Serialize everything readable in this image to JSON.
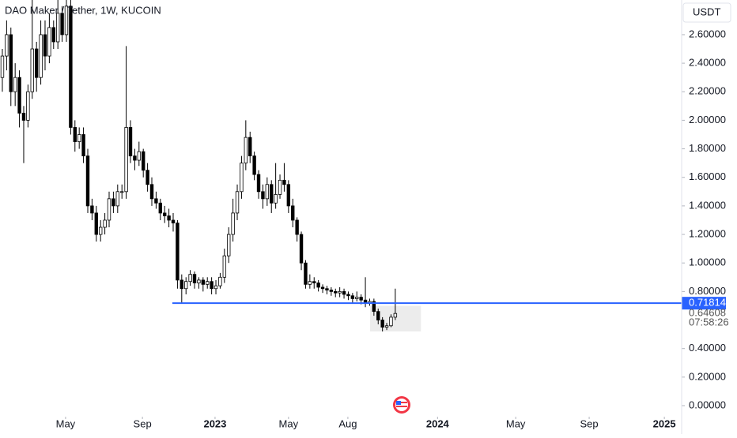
{
  "chart_data": {
    "type": "candlestick",
    "title": "DAO Maker / Tether, 1W, KUCOIN",
    "currency": "USDT",
    "x": [
      0,
      1,
      2,
      3,
      4,
      5,
      6,
      7,
      8,
      9,
      10,
      11,
      12,
      13,
      14,
      15,
      16,
      17,
      18,
      19,
      20,
      21,
      22,
      23,
      24,
      25,
      26,
      27,
      28,
      29,
      30,
      31,
      32,
      33,
      34,
      35,
      36,
      37,
      38,
      39,
      40,
      41,
      42,
      43,
      44,
      45,
      46,
      47,
      48,
      49,
      50,
      51,
      52,
      53,
      54,
      55,
      56,
      57,
      58,
      59,
      60,
      61,
      62,
      63,
      64,
      65,
      66,
      67,
      68,
      69,
      70,
      71,
      72,
      73,
      74,
      75,
      76,
      77,
      78,
      79,
      80,
      81,
      82,
      83,
      84,
      85,
      86,
      87,
      88,
      89,
      90,
      91,
      92
    ],
    "open": [
      2.3,
      2.45,
      2.6,
      2.2,
      2.3,
      2.05,
      2.0,
      2.2,
      2.5,
      2.3,
      2.6,
      2.45,
      2.65,
      2.55,
      2.75,
      2.6,
      2.8,
      1.95,
      1.85,
      1.9,
      1.75,
      1.4,
      1.35,
      1.2,
      1.25,
      1.3,
      1.45,
      1.4,
      1.5,
      1.5,
      1.95,
      1.75,
      1.72,
      1.78,
      1.65,
      1.55,
      1.45,
      1.42,
      1.35,
      1.33,
      1.3,
      1.28,
      0.88,
      0.82,
      0.87,
      0.92,
      0.86,
      0.88,
      0.85,
      0.87,
      0.82,
      0.84,
      0.9,
      1.05,
      1.2,
      1.35,
      1.5,
      1.7,
      1.88,
      1.75,
      1.62,
      1.5,
      1.45,
      1.55,
      1.42,
      1.48,
      1.58,
      1.55,
      1.4,
      1.3,
      1.2,
      1.0,
      0.85,
      0.87,
      0.86,
      0.83,
      0.82,
      0.81,
      0.8,
      0.79,
      0.8,
      0.78,
      0.77,
      0.75,
      0.76,
      0.74,
      0.72,
      0.73,
      0.66,
      0.6,
      0.55,
      0.56,
      0.62
    ],
    "high": [
      2.5,
      2.7,
      2.65,
      2.4,
      2.35,
      2.1,
      2.25,
      2.9,
      2.55,
      2.7,
      2.7,
      2.75,
      2.7,
      2.85,
      2.8,
      2.9,
      2.85,
      2.0,
      1.95,
      1.95,
      1.8,
      1.45,
      1.4,
      1.3,
      1.35,
      1.5,
      1.5,
      1.55,
      1.55,
      2.52,
      2.0,
      1.8,
      1.85,
      1.8,
      1.7,
      1.6,
      1.5,
      1.45,
      1.4,
      1.38,
      1.35,
      1.3,
      0.92,
      0.9,
      0.95,
      0.94,
      0.9,
      0.9,
      0.9,
      0.9,
      0.88,
      0.93,
      1.1,
      1.25,
      1.45,
      1.55,
      1.75,
      2.0,
      1.92,
      1.78,
      1.65,
      1.55,
      1.6,
      1.58,
      1.7,
      1.62,
      1.7,
      1.58,
      1.45,
      1.32,
      1.22,
      1.02,
      0.92,
      0.9,
      0.88,
      0.85,
      0.84,
      0.83,
      0.82,
      0.83,
      0.82,
      0.8,
      0.79,
      0.8,
      0.78,
      0.9,
      0.75,
      0.75,
      0.68,
      0.62,
      0.58,
      0.64,
      0.82
    ],
    "low": [
      2.2,
      2.35,
      2.1,
      2.1,
      1.95,
      1.7,
      1.95,
      2.15,
      2.2,
      2.25,
      2.35,
      2.4,
      2.5,
      2.5,
      2.55,
      2.55,
      1.9,
      1.78,
      1.8,
      1.7,
      1.35,
      1.3,
      1.15,
      1.15,
      1.2,
      1.25,
      1.35,
      1.35,
      1.45,
      1.45,
      1.7,
      1.65,
      1.68,
      1.6,
      1.5,
      1.4,
      1.38,
      1.3,
      1.28,
      1.25,
      1.22,
      0.82,
      0.72,
      0.78,
      0.84,
      0.82,
      0.82,
      0.8,
      0.82,
      0.78,
      0.78,
      0.82,
      0.86,
      1.0,
      1.15,
      1.3,
      1.45,
      1.65,
      1.7,
      1.58,
      1.45,
      1.38,
      1.4,
      1.35,
      1.38,
      1.45,
      1.5,
      1.35,
      1.25,
      1.15,
      0.95,
      0.82,
      0.82,
      0.82,
      0.8,
      0.79,
      0.78,
      0.77,
      0.76,
      0.76,
      0.75,
      0.74,
      0.72,
      0.73,
      0.71,
      0.69,
      0.7,
      0.63,
      0.57,
      0.52,
      0.53,
      0.55,
      0.6
    ],
    "close": [
      2.45,
      2.6,
      2.2,
      2.3,
      2.05,
      2.0,
      2.2,
      2.5,
      2.3,
      2.6,
      2.45,
      2.65,
      2.55,
      2.75,
      2.6,
      2.8,
      1.95,
      1.85,
      1.9,
      1.75,
      1.4,
      1.35,
      1.2,
      1.25,
      1.3,
      1.45,
      1.4,
      1.5,
      1.5,
      1.95,
      1.75,
      1.72,
      1.78,
      1.65,
      1.55,
      1.45,
      1.42,
      1.35,
      1.33,
      1.3,
      1.28,
      0.88,
      0.82,
      0.87,
      0.92,
      0.86,
      0.88,
      0.85,
      0.87,
      0.82,
      0.84,
      0.9,
      1.05,
      1.2,
      1.35,
      1.5,
      1.7,
      1.88,
      1.75,
      1.62,
      1.5,
      1.45,
      1.55,
      1.42,
      1.48,
      1.58,
      1.55,
      1.4,
      1.3,
      1.2,
      1.0,
      0.85,
      0.87,
      0.86,
      0.83,
      0.82,
      0.81,
      0.8,
      0.79,
      0.8,
      0.78,
      0.77,
      0.75,
      0.76,
      0.74,
      0.72,
      0.73,
      0.66,
      0.6,
      0.55,
      0.56,
      0.62,
      0.64608
    ],
    "up_color": "#ffffff",
    "down_color": "#000000",
    "xlim": [
      -0.55,
      159.05
    ],
    "xticks": [
      {
        "value": 14.8,
        "label": "May"
      },
      {
        "value": 32.8,
        "label": "Sep"
      },
      {
        "value": 49.8,
        "label": "2023"
      },
      {
        "value": 67,
        "label": "May"
      },
      {
        "value": 80.9,
        "label": "Aug"
      },
      {
        "value": 101.9,
        "label": "2024"
      },
      {
        "value": 120.2,
        "label": "May"
      },
      {
        "value": 137.4,
        "label": "Sep"
      },
      {
        "value": 155,
        "label": "2025"
      }
    ],
    "ylim": [
      -0.0774,
      2.843
    ],
    "yticks": [
      {
        "value": 0,
        "label": "0.00000"
      },
      {
        "value": 0.2,
        "label": "0.20000"
      },
      {
        "value": 0.4,
        "label": "0.40000"
      },
      {
        "value": 0.8,
        "label": "0.80000"
      },
      {
        "value": 1.0,
        "label": "1.00000"
      },
      {
        "value": 1.2,
        "label": "1.20000"
      },
      {
        "value": 1.4,
        "label": "1.40000"
      },
      {
        "value": 1.6,
        "label": "1.60000"
      },
      {
        "value": 1.8,
        "label": "1.80000"
      },
      {
        "value": 2.0,
        "label": "2.00000"
      },
      {
        "value": 2.2,
        "label": "2.20000"
      },
      {
        "value": 2.4,
        "label": "2.40000"
      },
      {
        "value": 2.6,
        "label": "2.60000"
      }
    ],
    "hline": {
      "value": 0.71814,
      "label": "0.71814",
      "x_start": 39.8,
      "color": "#2962ff"
    },
    "current_price": {
      "value": 0.64608,
      "label": "0.64608",
      "countdown": "07:58:26"
    },
    "zone": {
      "x": [
        86.1,
        98
      ],
      "y": [
        0.52,
        0.7
      ],
      "color": "#ececec"
    }
  }
}
